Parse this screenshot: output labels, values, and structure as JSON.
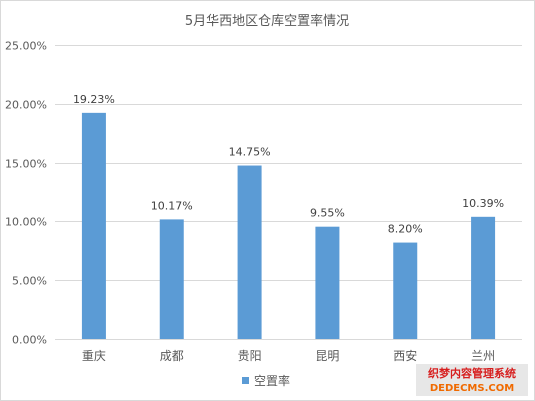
{
  "chart_data": {
    "type": "bar",
    "title": "5月华西地区仓库空置率情况",
    "categories": [
      "重庆",
      "成都",
      "贵阳",
      "昆明",
      "西安",
      "兰州"
    ],
    "series": [
      {
        "name": "空置率",
        "values": [
          19.23,
          10.17,
          14.75,
          9.55,
          8.2,
          10.39
        ],
        "labels": [
          "19.23%",
          "10.17%",
          "14.75%",
          "9.55%",
          "8.20%",
          "10.39%"
        ]
      }
    ],
    "ylim": [
      0,
      25
    ],
    "yticks": [
      0,
      5,
      10,
      15,
      20,
      25
    ],
    "ytick_labels": [
      "0.00%",
      "5.00%",
      "10.00%",
      "15.00%",
      "20.00%",
      "25.00%"
    ],
    "grid": true,
    "legend": "bottom-center",
    "colors": {
      "bar": "#5b9bd5",
      "grid": "#d9d9d9",
      "text": "#595959",
      "label": "#404040"
    }
  },
  "watermark": {
    "line1": "织梦内容管理系统",
    "line2": "DEDECMS.COM",
    "colors": {
      "bg": "#e7e7e7",
      "line1": "#d71e1e",
      "line2": "#f06a00"
    }
  }
}
